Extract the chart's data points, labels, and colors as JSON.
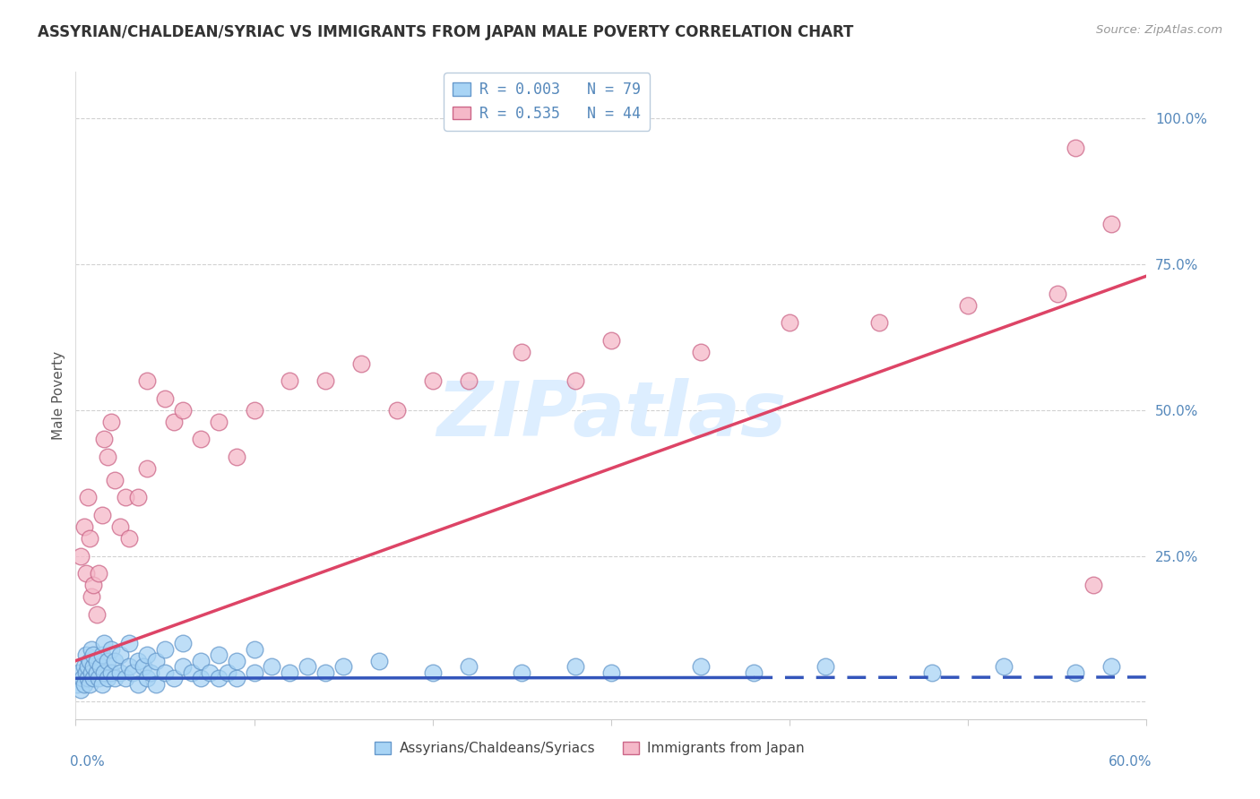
{
  "title": "ASSYRIAN/CHALDEAN/SYRIAC VS IMMIGRANTS FROM JAPAN MALE POVERTY CORRELATION CHART",
  "source": "Source: ZipAtlas.com",
  "ylabel": "Male Poverty",
  "xmin": 0.0,
  "xmax": 0.6,
  "ymin": -0.03,
  "ymax": 1.08,
  "legend_text1": "R = 0.003   N = 79",
  "legend_text2": "R = 0.535   N = 44",
  "legend_label1": "Assyrians/Chaldeans/Syriacs",
  "legend_label2": "Immigrants from Japan",
  "color_blue_fill": "#A8D4F5",
  "color_blue_edge": "#6699CC",
  "color_pink_fill": "#F5B8C8",
  "color_pink_edge": "#CC6688",
  "color_blue_line": "#3355BB",
  "color_pink_line": "#DD4466",
  "color_axis_blue": "#5588BB",
  "color_grid": "#CCCCCC",
  "color_title": "#333333",
  "color_source": "#999999",
  "watermark": "ZIPatlas",
  "watermark_color": "#DDEEFF",
  "right_ytick_vals": [
    0.0,
    0.25,
    0.5,
    0.75,
    1.0
  ],
  "right_ytick_labels": [
    "",
    "25.0%",
    "50.0%",
    "75.0%",
    "100.0%"
  ],
  "blue_trend_x": [
    0.0,
    0.6
  ],
  "blue_trend_y": [
    0.04,
    0.042
  ],
  "blue_trend_solid_end": 0.38,
  "pink_trend_x": [
    0.0,
    0.6
  ],
  "pink_trend_y": [
    0.07,
    0.73
  ],
  "blue_x": [
    0.001,
    0.002,
    0.003,
    0.004,
    0.005,
    0.005,
    0.006,
    0.006,
    0.007,
    0.007,
    0.008,
    0.008,
    0.009,
    0.009,
    0.01,
    0.01,
    0.01,
    0.012,
    0.012,
    0.013,
    0.014,
    0.015,
    0.015,
    0.016,
    0.016,
    0.018,
    0.018,
    0.02,
    0.02,
    0.022,
    0.022,
    0.025,
    0.025,
    0.028,
    0.03,
    0.03,
    0.032,
    0.035,
    0.035,
    0.038,
    0.04,
    0.04,
    0.042,
    0.045,
    0.045,
    0.05,
    0.05,
    0.055,
    0.06,
    0.06,
    0.065,
    0.07,
    0.07,
    0.075,
    0.08,
    0.08,
    0.085,
    0.09,
    0.09,
    0.1,
    0.1,
    0.11,
    0.12,
    0.13,
    0.14,
    0.15,
    0.17,
    0.2,
    0.22,
    0.25,
    0.28,
    0.3,
    0.35,
    0.38,
    0.42,
    0.48,
    0.52,
    0.56,
    0.58
  ],
  "blue_y": [
    0.03,
    0.05,
    0.02,
    0.04,
    0.06,
    0.03,
    0.05,
    0.08,
    0.04,
    0.06,
    0.03,
    0.07,
    0.05,
    0.09,
    0.04,
    0.06,
    0.08,
    0.05,
    0.07,
    0.04,
    0.06,
    0.03,
    0.08,
    0.05,
    0.1,
    0.04,
    0.07,
    0.05,
    0.09,
    0.04,
    0.07,
    0.05,
    0.08,
    0.04,
    0.06,
    0.1,
    0.05,
    0.07,
    0.03,
    0.06,
    0.04,
    0.08,
    0.05,
    0.03,
    0.07,
    0.05,
    0.09,
    0.04,
    0.06,
    0.1,
    0.05,
    0.04,
    0.07,
    0.05,
    0.04,
    0.08,
    0.05,
    0.04,
    0.07,
    0.05,
    0.09,
    0.06,
    0.05,
    0.06,
    0.05,
    0.06,
    0.07,
    0.05,
    0.06,
    0.05,
    0.06,
    0.05,
    0.06,
    0.05,
    0.06,
    0.05,
    0.06,
    0.05,
    0.06
  ],
  "pink_x": [
    0.003,
    0.005,
    0.006,
    0.007,
    0.008,
    0.009,
    0.01,
    0.012,
    0.013,
    0.015,
    0.016,
    0.018,
    0.02,
    0.022,
    0.025,
    0.028,
    0.03,
    0.035,
    0.04,
    0.04,
    0.05,
    0.055,
    0.06,
    0.07,
    0.08,
    0.09,
    0.1,
    0.12,
    0.14,
    0.16,
    0.18,
    0.2,
    0.22,
    0.25,
    0.28,
    0.3,
    0.35,
    0.4,
    0.45,
    0.5,
    0.55,
    0.56,
    0.57,
    0.58
  ],
  "pink_y": [
    0.25,
    0.3,
    0.22,
    0.35,
    0.28,
    0.18,
    0.2,
    0.15,
    0.22,
    0.32,
    0.45,
    0.42,
    0.48,
    0.38,
    0.3,
    0.35,
    0.28,
    0.35,
    0.4,
    0.55,
    0.52,
    0.48,
    0.5,
    0.45,
    0.48,
    0.42,
    0.5,
    0.55,
    0.55,
    0.58,
    0.5,
    0.55,
    0.55,
    0.6,
    0.55,
    0.62,
    0.6,
    0.65,
    0.65,
    0.68,
    0.7,
    0.95,
    0.2,
    0.82
  ]
}
